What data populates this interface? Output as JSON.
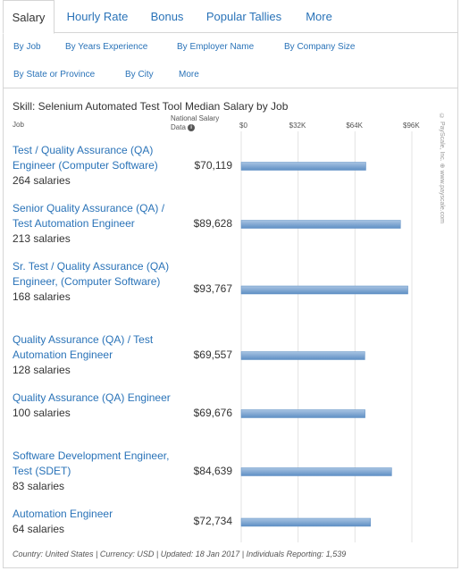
{
  "tabs": [
    {
      "label": "Salary",
      "active": true
    },
    {
      "label": "Hourly Rate",
      "active": false
    },
    {
      "label": "Bonus",
      "active": false
    },
    {
      "label": "Popular Tallies",
      "active": false
    },
    {
      "label": "More",
      "active": false
    }
  ],
  "subnav": [
    {
      "label": "By Job"
    },
    {
      "label": "By Years Experience"
    },
    {
      "label": "By Employer Name"
    },
    {
      "label": "By Company Size"
    },
    {
      "label": "By State or Province"
    },
    {
      "label": "By City"
    },
    {
      "label": "More"
    }
  ],
  "colors": {
    "link": "#2a73b8",
    "bar_top": "#a8c4e2",
    "bar_bottom": "#5f8fc4",
    "grid": "#e3e3e3"
  },
  "chart_data": {
    "type": "bar",
    "orientation": "horizontal",
    "title": "Skill: Selenium Automated Test Tool Median Salary by Job",
    "column_headers": {
      "job": "Job",
      "value": "National Salary Data"
    },
    "xlim": [
      0,
      96000
    ],
    "xticks": [
      {
        "value": 0,
        "label": "$0"
      },
      {
        "value": 32000,
        "label": "$32K"
      },
      {
        "value": 64000,
        "label": "$64K"
      },
      {
        "value": 96000,
        "label": "$96K"
      }
    ],
    "grid": true,
    "rows": [
      {
        "job": "Test / Quality Assurance (QA) Engineer (Computer Software)",
        "count": "264 salaries",
        "label": "$70,119",
        "value": 70119
      },
      {
        "job": "Senior Quality Assurance (QA) / Test Automation Engineer",
        "count": "213 salaries",
        "label": "$89,628",
        "value": 89628
      },
      {
        "job": "Sr. Test / Quality Assurance (QA) Engineer, (Computer Software)",
        "count": "168 salaries",
        "label": "$93,767",
        "value": 93767
      },
      {
        "job": "Quality Assurance (QA) / Test Automation Engineer",
        "count": "128 salaries",
        "label": "$69,557",
        "value": 69557
      },
      {
        "job": "Quality Assurance (QA) Engineer",
        "count": "100 salaries",
        "label": "$69,676",
        "value": 69676
      },
      {
        "job": "Software Development Engineer, Test (SDET)",
        "count": "83 salaries",
        "label": "$84,639",
        "value": 84639
      },
      {
        "job": "Automation Engineer",
        "count": "64 salaries",
        "label": "$72,734",
        "value": 72734
      }
    ]
  },
  "watermark": "© PayScale, Inc. ⊕ www.payscale.com",
  "footer": "Country: United States | Currency: USD | Updated: 18 Jan 2017 | Individuals Reporting: 1,539"
}
